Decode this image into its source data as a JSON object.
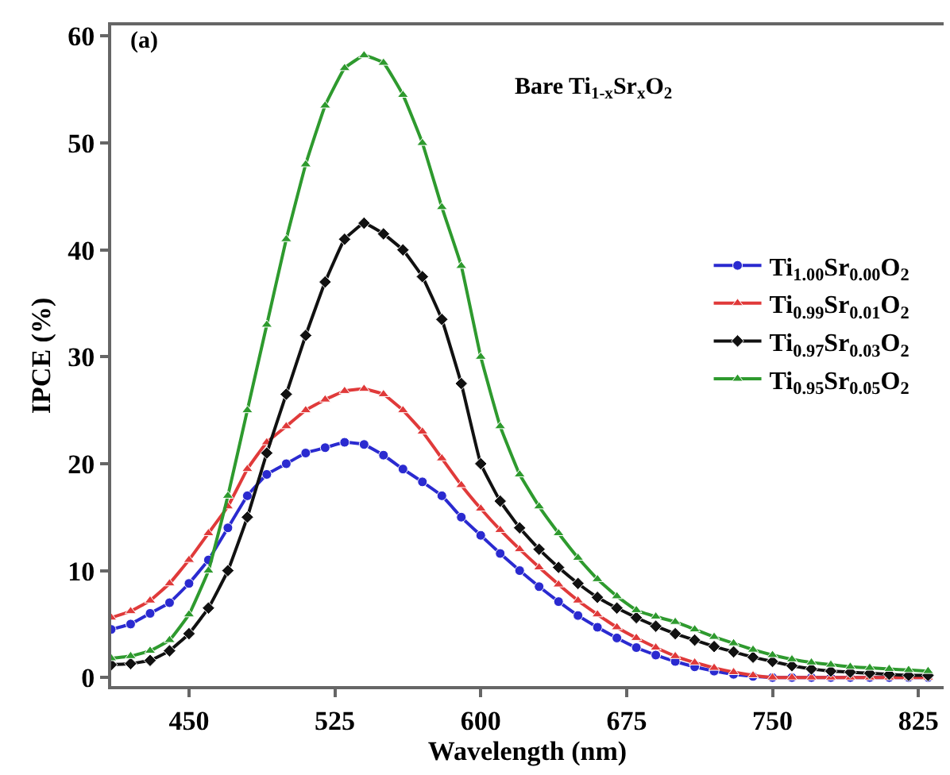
{
  "chart_data": {
    "type": "line",
    "xlabel": "Wavelength (nm)",
    "ylabel": "IPCE (%)",
    "annotations": [
      "(a)",
      "Bare Ti$_{1-x}$Sr$_{x}$O$_{2}$"
    ],
    "x": [
      410,
      420,
      430,
      440,
      450,
      460,
      470,
      480,
      490,
      500,
      510,
      520,
      530,
      540,
      550,
      560,
      570,
      580,
      590,
      600,
      610,
      620,
      630,
      640,
      650,
      660,
      670,
      680,
      690,
      700,
      710,
      720,
      730,
      740,
      750,
      760,
      770,
      780,
      790,
      800,
      810,
      820,
      830
    ],
    "series": [
      {
        "name": "Ti$_{1.00}$Sr$_{0.00}$O$_{2}$",
        "color": "#2a2ad0",
        "marker": "circle",
        "values": [
          4.5,
          5,
          6,
          7,
          8.8,
          11,
          14,
          17,
          19,
          20,
          21,
          21.5,
          22,
          21.8,
          20.8,
          19.5,
          18.3,
          17,
          15,
          13.3,
          11.6,
          10,
          8.5,
          7.1,
          5.8,
          4.7,
          3.7,
          2.8,
          2.1,
          1.5,
          1.0,
          0.6,
          0.3,
          0.1,
          0,
          0,
          0,
          0,
          0,
          0,
          0,
          0,
          0
        ]
      },
      {
        "name": "Ti$_{0.99}$Sr$_{0.01}$O$_{2}$",
        "color": "#e03a3a",
        "marker": "triangle",
        "values": [
          5.6,
          6.2,
          7.2,
          8.8,
          11,
          13.5,
          16,
          19.5,
          22,
          23.5,
          25,
          26,
          26.8,
          27,
          26.5,
          25,
          23,
          20.5,
          18,
          15.8,
          13.8,
          12,
          10.3,
          8.7,
          7.2,
          5.9,
          4.7,
          3.7,
          2.8,
          2.0,
          1.4,
          0.9,
          0.5,
          0.2,
          0,
          0,
          0,
          0,
          0,
          0,
          0,
          0,
          0
        ]
      },
      {
        "name": "Ti$_{0.97}$Sr$_{0.03}$O$_{2}$",
        "color": "#111111",
        "marker": "diamond",
        "values": [
          1.2,
          1.3,
          1.6,
          2.5,
          4.1,
          6.5,
          10,
          15,
          21,
          26.5,
          32,
          37,
          41,
          42.5,
          41.5,
          40,
          37.5,
          33.5,
          27.5,
          20,
          16.5,
          14,
          12,
          10.3,
          8.8,
          7.5,
          6.5,
          5.6,
          4.8,
          4.1,
          3.5,
          2.9,
          2.4,
          1.9,
          1.5,
          1.1,
          0.8,
          0.6,
          0.5,
          0.4,
          0.3,
          0.2,
          0.2
        ]
      },
      {
        "name": "Ti$_{0.95}$Sr$_{0.05}$O$_{2}$",
        "color": "#2e9a2e",
        "marker": "triangle",
        "values": [
          1.8,
          2,
          2.5,
          3.5,
          5.9,
          10,
          17,
          25,
          33,
          41,
          48,
          53.5,
          57,
          58.2,
          57.5,
          54.5,
          50,
          44,
          38.5,
          30,
          23.5,
          19,
          16,
          13.5,
          11.2,
          9.2,
          7.6,
          6.3,
          5.7,
          5.2,
          4.5,
          3.8,
          3.2,
          2.6,
          2.1,
          1.7,
          1.4,
          1.2,
          1.0,
          0.9,
          0.8,
          0.7,
          0.6
        ]
      }
    ],
    "xlim": [
      410,
      838
    ],
    "xticks": [
      450,
      525,
      600,
      675,
      750,
      825
    ],
    "ylim": [
      -0.8,
      61
    ],
    "yticks": [
      0,
      10,
      20,
      30,
      40,
      50,
      60
    ],
    "legend": "right",
    "line_style": "solid"
  }
}
